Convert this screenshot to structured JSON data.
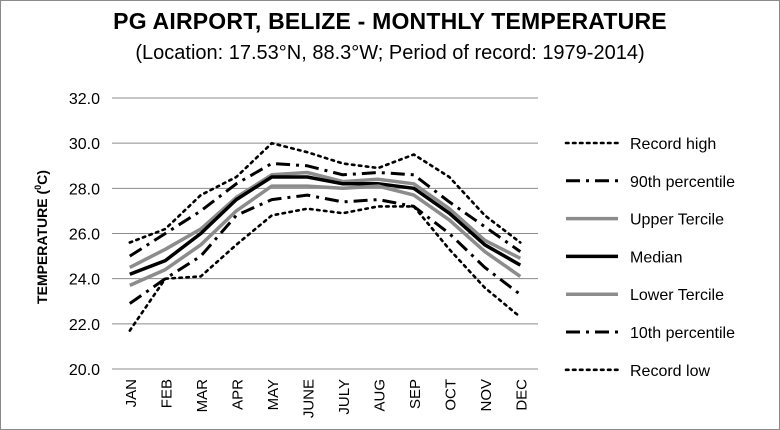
{
  "chart_data": {
    "type": "line",
    "title": "PG AIRPORT, BELIZE - MONTHLY TEMPERATURE",
    "subtitle": "(Location: 17.53°N, 88.3°W; Period of record: 1979-2014)",
    "ylabel": "TEMPERATURE (",
    "ylabel_sup": "0",
    "ylabel_tail": "C)",
    "xlabel": "",
    "ylim": [
      20,
      32
    ],
    "yticks": [
      "20.0",
      "22.0",
      "24.0",
      "26.0",
      "28.0",
      "30.0",
      "32.0"
    ],
    "grid": true,
    "legend_position": "right",
    "categories": [
      "JAN",
      "FEB",
      "MAR",
      "APR",
      "MAY",
      "JUNE",
      "JULY",
      "AUG",
      "SEP",
      "OCT",
      "NOV",
      "DEC"
    ],
    "series": [
      {
        "name": "Record high",
        "style": "dotted-black",
        "values": [
          25.6,
          26.2,
          27.7,
          28.5,
          30.0,
          29.6,
          29.1,
          28.9,
          29.5,
          28.5,
          26.8,
          25.6
        ]
      },
      {
        "name": "90th percentile",
        "style": "dashdot-black",
        "values": [
          25.0,
          26.0,
          27.0,
          28.2,
          29.1,
          29.0,
          28.6,
          28.7,
          28.6,
          27.4,
          26.3,
          25.2
        ]
      },
      {
        "name": "Upper Tercile",
        "style": "solid-gray",
        "values": [
          24.5,
          25.3,
          26.2,
          27.6,
          28.6,
          28.7,
          28.3,
          28.4,
          28.2,
          27.1,
          25.7,
          24.9
        ]
      },
      {
        "name": "Median",
        "style": "solid-black",
        "values": [
          24.2,
          24.8,
          26.0,
          27.5,
          28.5,
          28.5,
          28.2,
          28.2,
          28.0,
          26.9,
          25.5,
          24.6
        ]
      },
      {
        "name": "Lower Tercile",
        "style": "solid-gray",
        "values": [
          23.7,
          24.4,
          25.5,
          27.0,
          28.1,
          28.1,
          28.0,
          28.1,
          27.7,
          26.6,
          25.2,
          24.1
        ]
      },
      {
        "name": "10th percentile",
        "style": "dashdot-black",
        "values": [
          22.9,
          24.0,
          25.0,
          26.8,
          27.5,
          27.7,
          27.4,
          27.5,
          27.2,
          26.0,
          24.5,
          23.3
        ]
      },
      {
        "name": "Record low",
        "style": "dotted-black",
        "values": [
          21.7,
          24.0,
          24.1,
          25.5,
          26.8,
          27.1,
          26.9,
          27.2,
          27.2,
          25.3,
          23.6,
          22.3
        ]
      }
    ]
  }
}
